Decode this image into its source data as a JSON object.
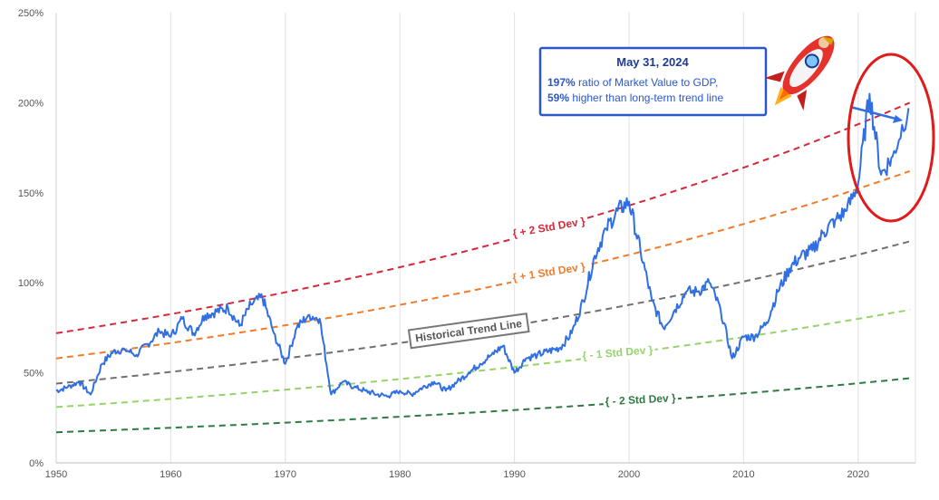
{
  "chart_data": {
    "type": "line",
    "xlim": [
      1950,
      2025
    ],
    "ylim": [
      0,
      250
    ],
    "x_ticks": [
      "1950",
      "1960",
      "1970",
      "1980",
      "1990",
      "2000",
      "2010",
      "2020"
    ],
    "y_ticks": [
      "0%",
      "50%",
      "100%",
      "150%",
      "200%",
      "250%"
    ],
    "grid": "vertical",
    "series": [
      {
        "name": "Market Value to GDP",
        "color": "#2f6fe3",
        "x": [
          1950,
          1951,
          1952,
          1953,
          1954,
          1955,
          1956,
          1957,
          1958,
          1959,
          1960,
          1961,
          1962,
          1963,
          1964,
          1965,
          1966,
          1967,
          1968,
          1969,
          1970,
          1971,
          1972,
          1973,
          1974,
          1975,
          1976,
          1977,
          1978,
          1979,
          1980,
          1981,
          1982,
          1983,
          1984,
          1985,
          1986,
          1987,
          1988,
          1989,
          1990,
          1991,
          1992,
          1993,
          1994,
          1995,
          1996,
          1997,
          1998,
          1999,
          2000,
          2001,
          2002,
          2003,
          2004,
          2005,
          2006,
          2007,
          2008,
          2009,
          2010,
          2011,
          2012,
          2013,
          2014,
          2015,
          2016,
          2017,
          2018,
          2019,
          2020,
          2021,
          2022,
          2023,
          2024.4
        ],
        "values": [
          40,
          42,
          45,
          38,
          55,
          62,
          63,
          60,
          66,
          73,
          70,
          80,
          72,
          82,
          84,
          86,
          76,
          88,
          92,
          72,
          55,
          75,
          82,
          80,
          38,
          45,
          42,
          40,
          38,
          37,
          40,
          38,
          42,
          45,
          40,
          45,
          50,
          55,
          60,
          65,
          50,
          58,
          60,
          62,
          64,
          72,
          90,
          115,
          130,
          140,
          145,
          118,
          90,
          75,
          85,
          95,
          95,
          100,
          85,
          58,
          70,
          70,
          78,
          95,
          108,
          115,
          118,
          128,
          135,
          140,
          155,
          205,
          160,
          170,
          197
        ]
      }
    ],
    "bands": [
      {
        "label": "+ 2 Std Dev",
        "color": "#d62839",
        "start": 72,
        "end": 200
      },
      {
        "label": "+ 1 Std Dev",
        "color": "#f07b2b",
        "start": 58,
        "end": 162
      },
      {
        "label": "Historical Trend Line",
        "color": "#707070",
        "start": 44,
        "end": 123
      },
      {
        "label": "- 1 Std Dev",
        "color": "#96d36b",
        "start": 31,
        "end": 85
      },
      {
        "label": "- 2 Std Dev",
        "color": "#2f7a43",
        "start": 17,
        "end": 47
      }
    ],
    "annotation": {
      "title": "May 31, 2024",
      "line1_bold": "197%",
      "line1_rest": " ratio of Market Value to GDP,",
      "line2_bold": "59%",
      "line2_rest": " higher than long-term trend line"
    }
  },
  "colors": {
    "annotation_border": "#2b57c9",
    "highlight_circle": "#e01b1b"
  },
  "icons": {
    "rocket": "rocket-icon"
  }
}
